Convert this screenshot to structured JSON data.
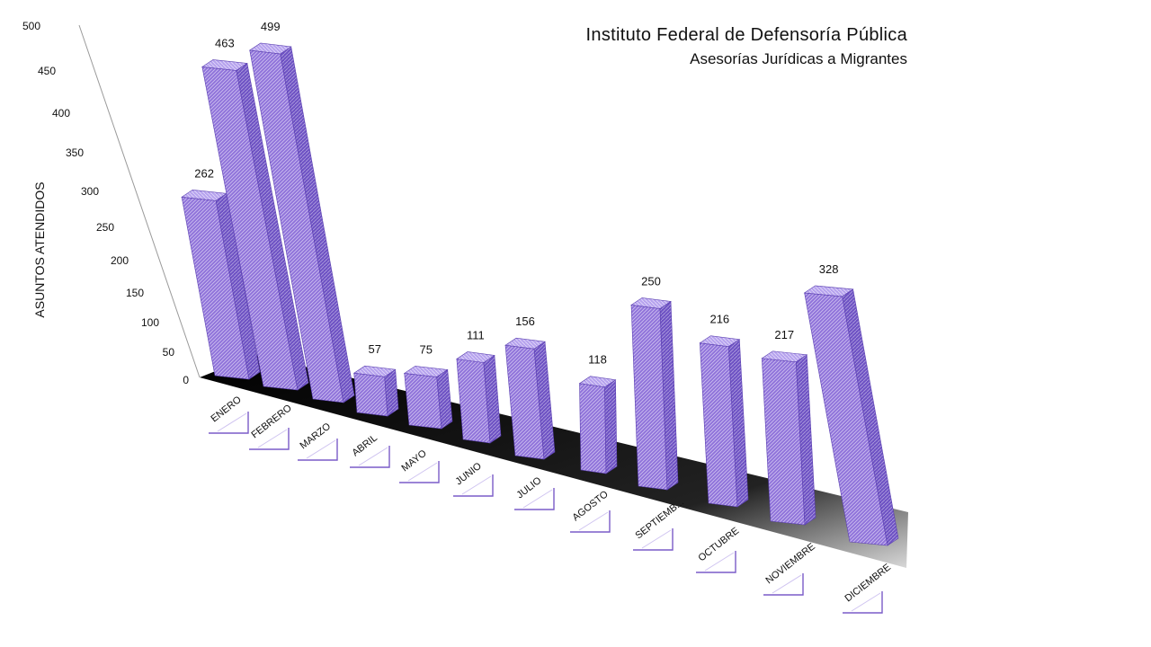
{
  "chart_data": {
    "type": "bar",
    "title_line1": "Instituto Federal de Defensoría Pública",
    "title_line2": "Asesorías Jurídicas a Migrantes",
    "ylabel": "ASUNTOS ATENDIDOS",
    "xlabel": "",
    "ylim": [
      0,
      500
    ],
    "yticks": [
      "0",
      "50",
      "100",
      "150",
      "200",
      "250",
      "300",
      "350",
      "400",
      "450",
      "500"
    ],
    "categories": [
      "ENERO",
      "FEBRERO",
      "MARZO",
      "ABRIL",
      "MAYO",
      "JUNIO",
      "JULIO",
      "AGOSTO",
      "SEPTIEMB...",
      "OCTUBRE",
      "NOVIEMBRE",
      "DICIEMBRE"
    ],
    "values": [
      262,
      463,
      499,
      57,
      75,
      111,
      156,
      118,
      250,
      216,
      217,
      328
    ],
    "value_labels": [
      "262",
      "463",
      "499",
      "57",
      "75",
      "111",
      "156",
      "118",
      "250",
      "216",
      "217",
      "328"
    ],
    "bar_color": "#8c6fd8",
    "bar_top_color": "#b9a6ee",
    "bar_side_color": "#6a4fbf",
    "floor_color": "#000000",
    "grid": false,
    "legend": "none"
  }
}
